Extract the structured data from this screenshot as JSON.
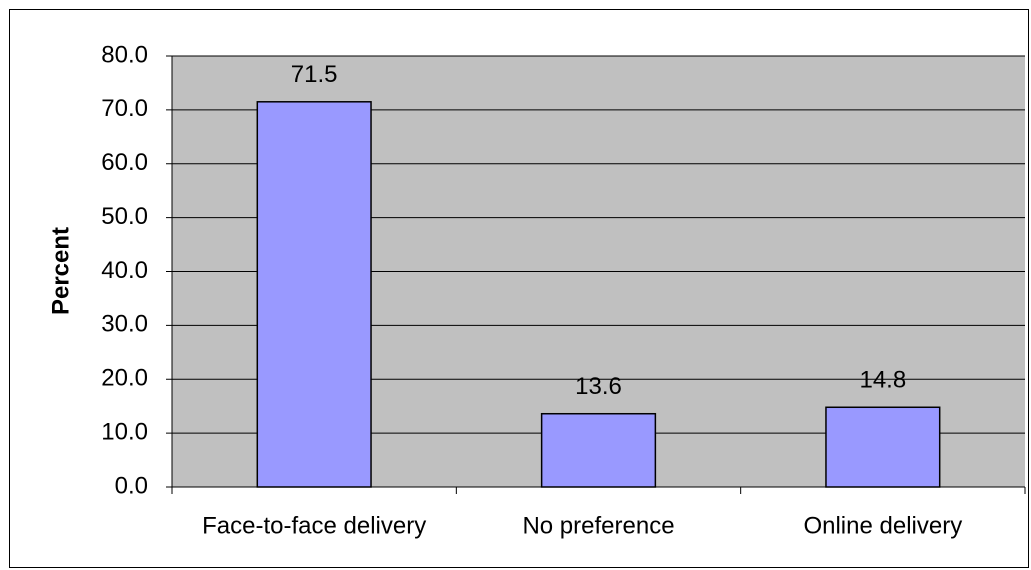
{
  "chart_data": {
    "type": "bar",
    "y_label": "Percent",
    "categories": [
      "Face-to-face delivery",
      "No preference",
      "Online delivery"
    ],
    "values": [
      71.5,
      13.6,
      14.8
    ],
    "color": "#9999ff",
    "plot_background": "#c0c0c0",
    "ylim": [
      0,
      80
    ],
    "yticks": [
      {
        "value": 0,
        "label": "0.0"
      },
      {
        "value": 10,
        "label": "10.0"
      },
      {
        "value": 20,
        "label": "20.0"
      },
      {
        "value": 30,
        "label": "30.0"
      },
      {
        "value": 40,
        "label": "40.0"
      },
      {
        "value": 50,
        "label": "50.0"
      },
      {
        "value": 60,
        "label": "60.0"
      },
      {
        "value": 70,
        "label": "70.0"
      },
      {
        "value": 80,
        "label": "80.0"
      }
    ],
    "grid": true
  }
}
